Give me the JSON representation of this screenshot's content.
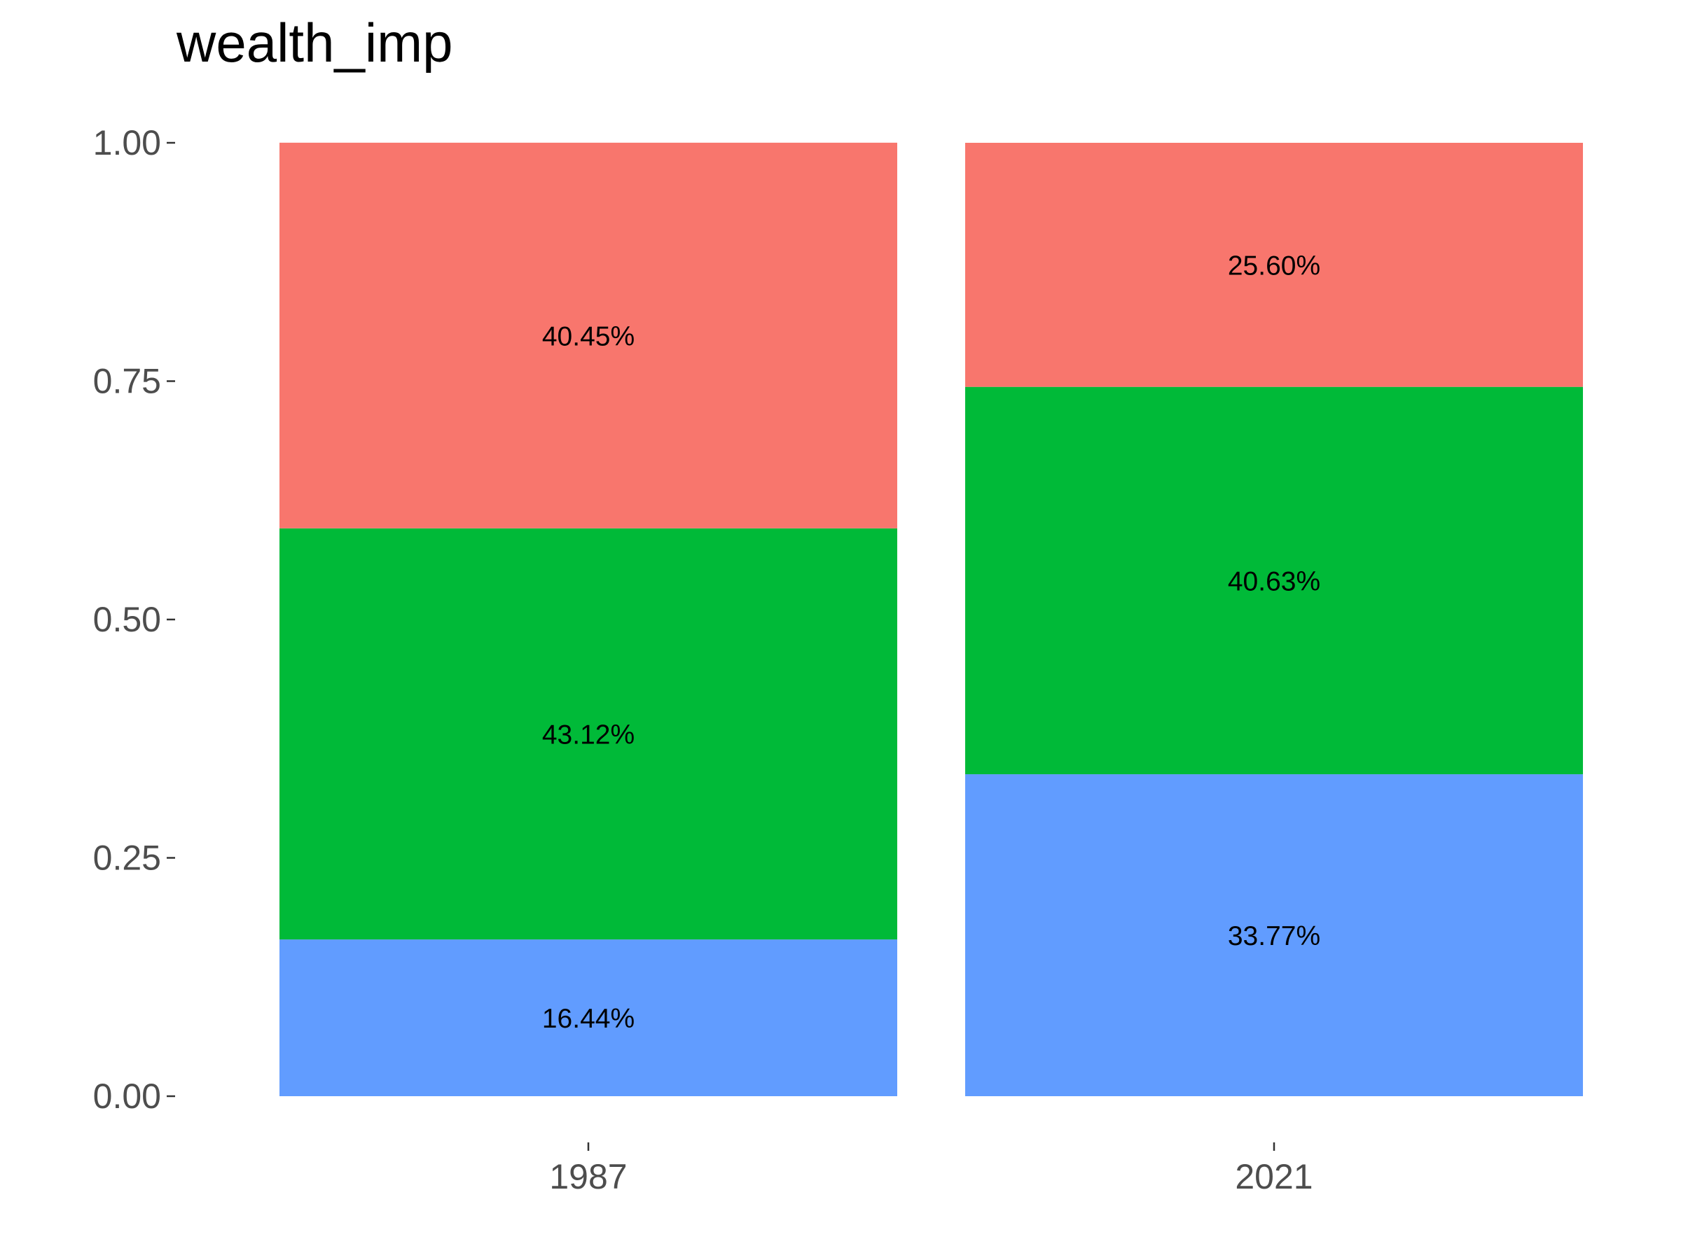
{
  "chart_data": {
    "type": "bar",
    "stacked": true,
    "title": "wealth_imp",
    "xlabel": "",
    "ylabel": "",
    "ylim": [
      0,
      1
    ],
    "yticks": [
      "0.00",
      "0.25",
      "0.50",
      "0.75",
      "1.00"
    ],
    "ytick_values": [
      0,
      0.25,
      0.5,
      0.75,
      1.0
    ],
    "categories": [
      "1987",
      "2021"
    ],
    "grid": false,
    "legend": "none",
    "series": [
      {
        "values": [
          0.1644,
          0.3377
        ],
        "labels": [
          "16.44%",
          "33.77%"
        ],
        "color": "#619CFF"
      },
      {
        "values": [
          0.4312,
          0.4063
        ],
        "labels": [
          "43.12%",
          "40.63%"
        ],
        "color": "#00BA38"
      },
      {
        "values": [
          0.4045,
          0.256
        ],
        "labels": [
          "40.45%",
          "25.60%"
        ],
        "color": "#F8766D"
      }
    ]
  }
}
